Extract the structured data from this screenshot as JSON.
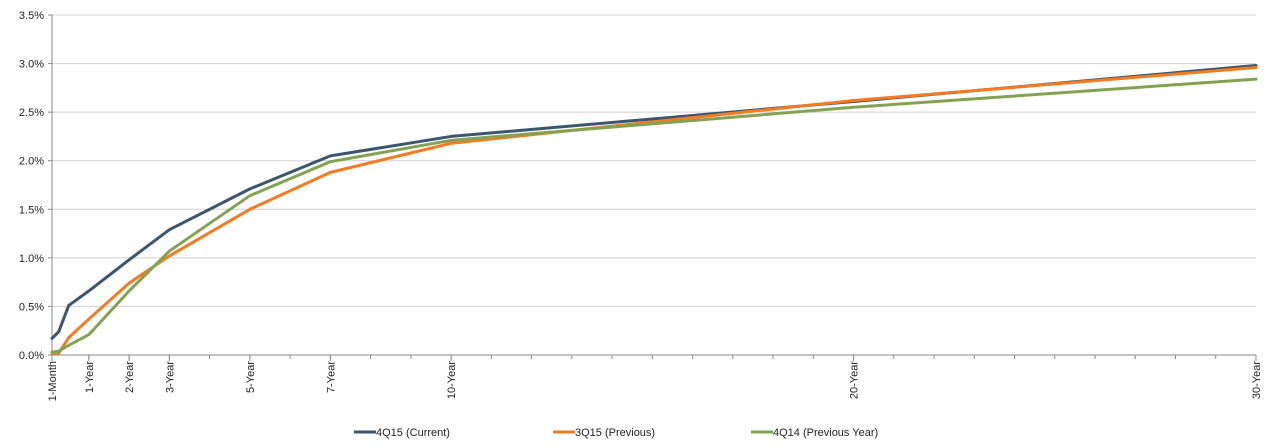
{
  "chart_data": {
    "type": "line",
    "title": "",
    "xlabel": "",
    "ylabel": "",
    "x_unit": "years to maturity",
    "x_range": [
      0.0833,
      30
    ],
    "ylim": [
      0,
      3.5
    ],
    "y_ticks": [
      0,
      0.5,
      1.0,
      1.5,
      2.0,
      2.5,
      3.0,
      3.5
    ],
    "y_tick_labels": [
      "0.0%",
      "0.5%",
      "1.0%",
      "1.5%",
      "2.0%",
      "2.5%",
      "3.0%",
      "3.5%"
    ],
    "x_ticks": [
      0.0833,
      1,
      2,
      3,
      5,
      7,
      10,
      20,
      30
    ],
    "x_tick_labels": [
      "1-Month",
      "1-Year",
      "2-Year",
      "3-Year",
      "5-Year",
      "7-Year",
      "10-Year",
      "20-Year",
      "30-Year"
    ],
    "grid": "horizontal",
    "legend_position": "bottom",
    "x": [
      0.0833,
      0.25,
      0.5,
      1,
      2,
      3,
      5,
      7,
      10,
      20,
      30
    ],
    "series": [
      {
        "name": "4Q15 (Current)",
        "color": "#3b566e",
        "values": [
          0.17,
          0.24,
          0.51,
          0.66,
          0.98,
          1.29,
          1.71,
          2.05,
          2.25,
          2.61,
          2.98
        ]
      },
      {
        "name": "3Q15 (Previous)",
        "color": "#f47b20",
        "values": [
          0.02,
          0.02,
          0.18,
          0.37,
          0.74,
          1.02,
          1.5,
          1.88,
          2.18,
          2.62,
          2.96
        ]
      },
      {
        "name": "4Q14 (Previous Year)",
        "color": "#84a352",
        "values": [
          0.03,
          0.04,
          0.1,
          0.21,
          0.66,
          1.07,
          1.64,
          1.99,
          2.21,
          2.55,
          2.84
        ]
      }
    ]
  }
}
